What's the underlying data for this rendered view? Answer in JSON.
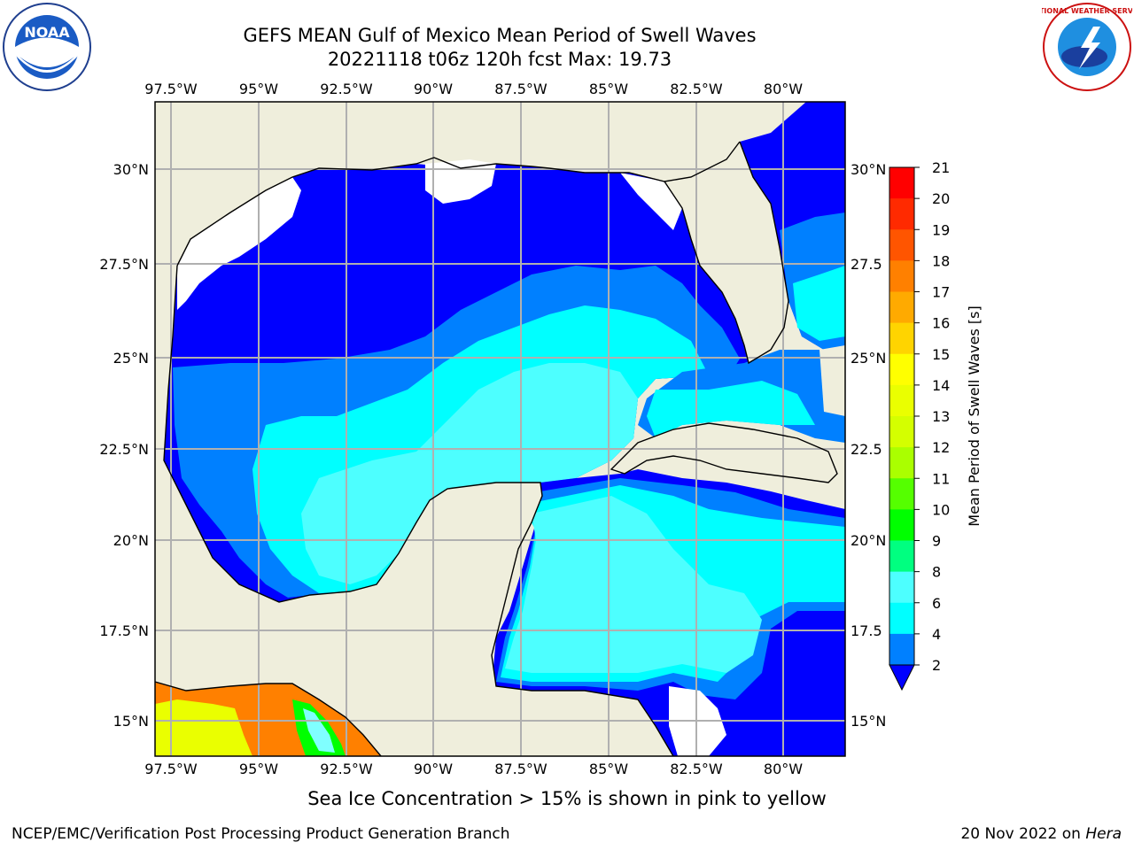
{
  "header": {
    "title_line1": "GEFS MEAN Gulf of Mexico Mean Period of Swell Waves",
    "title_line2": "20221118 t06z 120h fcst   Max: 19.73"
  },
  "logos": {
    "noaa": "NOAA",
    "nws": "NATIONAL WEATHER SERVICE"
  },
  "map": {
    "lon_labels": [
      "97.5°W",
      "95°W",
      "92.5°W",
      "90°W",
      "87.5°W",
      "85°W",
      "82.5°W",
      "80°W"
    ],
    "lat_labels_left": [
      "30°N",
      "27.5°N",
      "25°N",
      "22.5°N",
      "20°N",
      "17.5°N",
      "15°N"
    ],
    "lat_labels_right": [
      "30°N",
      "27.5",
      "25°N",
      "22.5",
      "20°N",
      "17.5",
      "15°N"
    ],
    "colors": {
      "land": "#efeedc",
      "no_data": "#ffffff",
      "dark_blue": "#0000ff",
      "medium_blue": "#0080ff",
      "cyan": "#00ffff",
      "light_cyan": "#4dffff",
      "grid": "#b0b0b0"
    }
  },
  "colorbar": {
    "label": "Mean Period of Swell Waves [s]",
    "ticks": [
      "21",
      "20",
      "19",
      "18",
      "17",
      "16",
      "15",
      "14",
      "13",
      "12",
      "11",
      "10",
      "9",
      "8",
      "6",
      "4",
      "2"
    ],
    "colors": [
      "#ff0000",
      "#ff2a00",
      "#ff5500",
      "#ff8000",
      "#ffaa00",
      "#ffd400",
      "#ffff00",
      "#eaff00",
      "#d4ff00",
      "#aaff00",
      "#55ff00",
      "#00ff00",
      "#00ff80",
      "#80ffff",
      "#4dffff",
      "#00ffff",
      "#0080ff",
      "#0000ff"
    ]
  },
  "note": "Sea Ice Concentration > 15% is shown in pink to yellow",
  "footer": {
    "left": "NCEP/EMC/Verification Post Processing Product Generation Branch",
    "date": "20 Nov 2022 on ",
    "host": "Hera"
  }
}
